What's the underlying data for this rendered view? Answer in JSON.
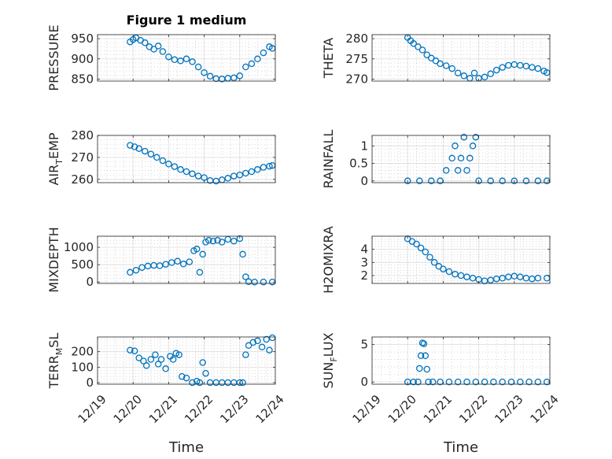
{
  "chart_data": [
    {
      "id": "pressure",
      "type": "scatter",
      "title": "Figure 1 medium",
      "ylabel": "PRESSURE",
      "xlabel": "",
      "xlim": [
        "12/19",
        "12/24"
      ],
      "ylim": [
        845,
        960
      ],
      "yticks": [
        850,
        900,
        950
      ],
      "xticks": [],
      "grid": true,
      "color": "#0072BD",
      "x": [
        "12/19 22:00",
        "12/20 00:00",
        "12/20 02:00",
        "12/20 05:00",
        "12/20 08:00",
        "12/20 11:00",
        "12/20 14:00",
        "12/20 17:00",
        "12/20 20:00",
        "12/21 00:00",
        "12/21 04:00",
        "12/21 08:00",
        "12/21 12:00",
        "12/21 16:00",
        "12/21 20:00",
        "12/22 00:00",
        "12/22 04:00",
        "12/22 08:00",
        "12/22 12:00",
        "12/22 16:00",
        "12/22 20:00",
        "12/23 00:00",
        "12/23 04:00",
        "12/23 08:00",
        "12/23 12:00",
        "12/23 16:00",
        "12/23 20:00",
        "12/23 22:00"
      ],
      "y": [
        942,
        948,
        952,
        946,
        940,
        930,
        924,
        932,
        918,
        905,
        898,
        895,
        900,
        893,
        880,
        866,
        857,
        851,
        850,
        852,
        853,
        858,
        880,
        888,
        900,
        915,
        930,
        926
      ]
    },
    {
      "id": "theta",
      "type": "scatter",
      "title": "",
      "ylabel": "THETA",
      "xlabel": "",
      "xlim": [
        "12/19",
        "12/24"
      ],
      "ylim": [
        269.5,
        281
      ],
      "yticks": [
        270,
        275,
        280
      ],
      "xticks": [],
      "grid": true,
      "color": "#0072BD",
      "x": [
        "12/20 00:00",
        "12/20 02:00",
        "12/20 04:00",
        "12/20 07:00",
        "12/20 10:00",
        "12/20 13:00",
        "12/20 16:00",
        "12/20 19:00",
        "12/20 22:00",
        "12/21 02:00",
        "12/21 06:00",
        "12/21 10:00",
        "12/21 14:00",
        "12/21 18:00",
        "12/21 21:00",
        "12/22 00:00",
        "12/22 04:00",
        "12/22 08:00",
        "12/22 12:00",
        "12/22 16:00",
        "12/22 20:00",
        "12/23 00:00",
        "12/23 04:00",
        "12/23 08:00",
        "12/23 12:00",
        "12/23 16:00",
        "12/23 20:00",
        "12/23 22:00"
      ],
      "y": [
        280.3,
        279.5,
        278.8,
        278.0,
        277.2,
        276.0,
        275.2,
        274.5,
        273.8,
        273.3,
        272.6,
        271.5,
        270.8,
        270.2,
        271.5,
        270.2,
        270.5,
        271.3,
        272.2,
        272.9,
        273.4,
        273.6,
        273.4,
        273.2,
        272.9,
        272.6,
        272.0,
        271.6
      ]
    },
    {
      "id": "air_temp",
      "type": "scatter",
      "title": "",
      "ylabel": "AIR_TEMP",
      "ylabel_main": "AIR",
      "ylabel_sub": "T",
      "ylabel_tail": "EMP",
      "xlabel": "",
      "xlim": [
        "12/19",
        "12/24"
      ],
      "ylim": [
        258.5,
        280
      ],
      "yticks": [
        260,
        270,
        280
      ],
      "xticks": [],
      "grid": true,
      "color": "#0072BD",
      "x": [
        "12/19 22:00",
        "12/20 01:00",
        "12/20 04:00",
        "12/20 08:00",
        "12/20 12:00",
        "12/20 16:00",
        "12/20 20:00",
        "12/21 00:00",
        "12/21 04:00",
        "12/21 08:00",
        "12/21 12:00",
        "12/21 16:00",
        "12/21 20:00",
        "12/22 00:00",
        "12/22 04:00",
        "12/22 08:00",
        "12/22 12:00",
        "12/22 16:00",
        "12/22 20:00",
        "12/23 00:00",
        "12/23 04:00",
        "12/23 08:00",
        "12/23 12:00",
        "12/23 16:00",
        "12/23 20:00",
        "12/23 22:00"
      ],
      "y": [
        275.5,
        274.8,
        274.0,
        272.8,
        271.5,
        270.0,
        268.5,
        267.0,
        265.8,
        264.5,
        263.5,
        262.5,
        261.5,
        260.8,
        259.5,
        259.2,
        259.8,
        260.5,
        261.5,
        262.0,
        262.8,
        263.5,
        264.5,
        265.5,
        266.0,
        266.3
      ]
    },
    {
      "id": "rainfall",
      "type": "scatter",
      "title": "",
      "ylabel": "RAINFALL",
      "xlabel": "",
      "xlim": [
        "12/19",
        "12/24"
      ],
      "ylim": [
        -0.05,
        1.3
      ],
      "yticks": [
        0,
        0.5,
        1
      ],
      "ytick_labels": [
        "0",
        "0.5",
        "1"
      ],
      "xticks": [],
      "grid": true,
      "color": "#0072BD",
      "x": [
        "12/20 00:00",
        "12/20 08:00",
        "12/20 16:00",
        "12/20 22:00",
        "12/21 02:00",
        "12/21 06:00",
        "12/21 08:00",
        "12/21 10:00",
        "12/21 12:00",
        "12/21 14:00",
        "12/21 16:00",
        "12/21 18:00",
        "12/21 20:00",
        "12/21 22:00",
        "12/22 00:00",
        "12/22 08:00",
        "12/22 16:00",
        "12/23 00:00",
        "12/23 08:00",
        "12/23 16:00",
        "12/23 22:00"
      ],
      "y": [
        0,
        0,
        0,
        0,
        0.3,
        0.65,
        1.0,
        0.3,
        0.65,
        1.25,
        0.3,
        0.65,
        1.0,
        1.25,
        0,
        0,
        0,
        0,
        0,
        0,
        0
      ]
    },
    {
      "id": "mixdepth",
      "type": "scatter",
      "title": "",
      "ylabel": "MIXDEPTH",
      "xlabel": "",
      "xlim": [
        "12/19",
        "12/24"
      ],
      "ylim": [
        -40,
        1320
      ],
      "yticks": [
        0,
        500,
        1000
      ],
      "xticks": [],
      "grid": true,
      "color": "#0072BD",
      "x": [
        "12/19 22:00",
        "12/20 02:00",
        "12/20 06:00",
        "12/20 10:00",
        "12/20 14:00",
        "12/20 18:00",
        "12/20 22:00",
        "12/21 02:00",
        "12/21 06:00",
        "12/21 10:00",
        "12/21 14:00",
        "12/21 17:00",
        "12/21 19:00",
        "12/21 21:00",
        "12/21 23:00",
        "12/22 01:00",
        "12/22 03:00",
        "12/22 06:00",
        "12/22 09:00",
        "12/22 12:00",
        "12/22 16:00",
        "12/22 20:00",
        "12/23 00:00",
        "12/23 02:00",
        "12/23 04:00",
        "12/23 06:00",
        "12/23 10:00",
        "12/23 16:00",
        "12/23 22:00"
      ],
      "y": [
        280,
        340,
        420,
        460,
        480,
        470,
        510,
        560,
        600,
        520,
        580,
        900,
        950,
        280,
        800,
        1150,
        1200,
        1180,
        1200,
        1150,
        1230,
        1180,
        1250,
        800,
        150,
        10,
        0,
        0,
        0
      ]
    },
    {
      "id": "h2omixra",
      "type": "scatter",
      "title": "",
      "ylabel": "H2OMIXRA",
      "xlabel": "",
      "xlim": [
        "12/19",
        "12/24"
      ],
      "ylim": [
        1.4,
        5.0
      ],
      "yticks": [
        2,
        3,
        4
      ],
      "xticks": [],
      "grid": true,
      "color": "#0072BD",
      "x": [
        "12/20 00:00",
        "12/20 03:00",
        "12/20 06:00",
        "12/20 09:00",
        "12/20 12:00",
        "12/20 15:00",
        "12/20 18:00",
        "12/20 21:00",
        "12/21 00:00",
        "12/21 04:00",
        "12/21 08:00",
        "12/21 12:00",
        "12/21 16:00",
        "12/21 20:00",
        "12/22 00:00",
        "12/22 04:00",
        "12/22 08:00",
        "12/22 12:00",
        "12/22 16:00",
        "12/22 20:00",
        "12/23 00:00",
        "12/23 04:00",
        "12/23 08:00",
        "12/23 12:00",
        "12/23 16:00",
        "12/23 22:00"
      ],
      "y": [
        4.8,
        4.6,
        4.4,
        4.1,
        3.8,
        3.4,
        3.0,
        2.7,
        2.5,
        2.3,
        2.1,
        2.0,
        1.9,
        1.8,
        1.7,
        1.6,
        1.65,
        1.75,
        1.8,
        1.9,
        1.95,
        1.9,
        1.8,
        1.75,
        1.8,
        1.8
      ]
    },
    {
      "id": "terr_msl",
      "type": "scatter",
      "title": "",
      "ylabel": "TERR_MSL",
      "ylabel_main": "TERR",
      "ylabel_sub": "M",
      "ylabel_tail": "SL",
      "xlabel": "Time",
      "xlim": [
        "12/19",
        "12/24"
      ],
      "ylim": [
        -10,
        295
      ],
      "yticks": [
        0,
        100,
        200
      ],
      "xticks": [
        "12/19",
        "12/20",
        "12/21",
        "12/22",
        "12/23",
        "12/24"
      ],
      "grid": true,
      "color": "#0072BD",
      "x": [
        "12/19 22:00",
        "12/20 01:00",
        "12/20 04:00",
        "12/20 07:00",
        "12/20 09:00",
        "12/20 12:00",
        "12/20 15:00",
        "12/20 17:00",
        "12/20 19:00",
        "12/20 22:00",
        "12/21 01:00",
        "12/21 03:00",
        "12/21 05:00",
        "12/21 07:00",
        "12/21 09:00",
        "12/21 12:00",
        "12/21 16:00",
        "12/21 19:00",
        "12/21 21:00",
        "12/21 23:00",
        "12/22 01:00",
        "12/22 04:00",
        "12/22 08:00",
        "12/22 12:00",
        "12/22 16:00",
        "12/22 20:00",
        "12/23 00:00",
        "12/23 02:00",
        "12/23 04:00",
        "12/23 06:00",
        "12/23 09:00",
        "12/23 12:00",
        "12/23 15:00",
        "12/23 18:00",
        "12/23 20:00",
        "12/23 22:00"
      ],
      "y": [
        210,
        205,
        160,
        140,
        110,
        150,
        180,
        120,
        150,
        90,
        170,
        150,
        190,
        180,
        40,
        30,
        0,
        10,
        0,
        130,
        60,
        0,
        0,
        0,
        0,
        0,
        0,
        0,
        180,
        240,
        260,
        270,
        230,
        280,
        210,
        290
      ]
    },
    {
      "id": "sun_flux",
      "type": "scatter",
      "title": "",
      "ylabel": "SUN_FLUX",
      "ylabel_main": "SUN",
      "ylabel_sub": "F",
      "ylabel_tail": "LUX",
      "xlabel": "Time",
      "xlim": [
        "12/19",
        "12/24"
      ],
      "ylim": [
        -0.3,
        6.0
      ],
      "yticks": [
        0,
        5
      ],
      "xticks": [
        "12/19",
        "12/20",
        "12/21",
        "12/22",
        "12/23",
        "12/24"
      ],
      "grid": true,
      "color": "#0072BD",
      "x": [
        "12/20 00:00",
        "12/20 04:00",
        "12/20 07:00",
        "12/20 08:00",
        "12/20 09:00",
        "12/20 10:00",
        "12/20 11:00",
        "12/20 12:00",
        "12/20 13:00",
        "12/20 14:00",
        "12/20 17:00",
        "12/20 22:00",
        "12/21 04:00",
        "12/21 10:00",
        "12/21 16:00",
        "12/21 22:00",
        "12/22 04:00",
        "12/22 10:00",
        "12/22 16:00",
        "12/22 22:00",
        "12/23 04:00",
        "12/23 10:00",
        "12/23 16:00",
        "12/23 22:00"
      ],
      "y": [
        0,
        0,
        0,
        1.8,
        3.5,
        5.2,
        5.1,
        3.5,
        1.7,
        0,
        0,
        0,
        0,
        0,
        0,
        0,
        0,
        0,
        0,
        0,
        0,
        0,
        0,
        0
      ]
    }
  ]
}
